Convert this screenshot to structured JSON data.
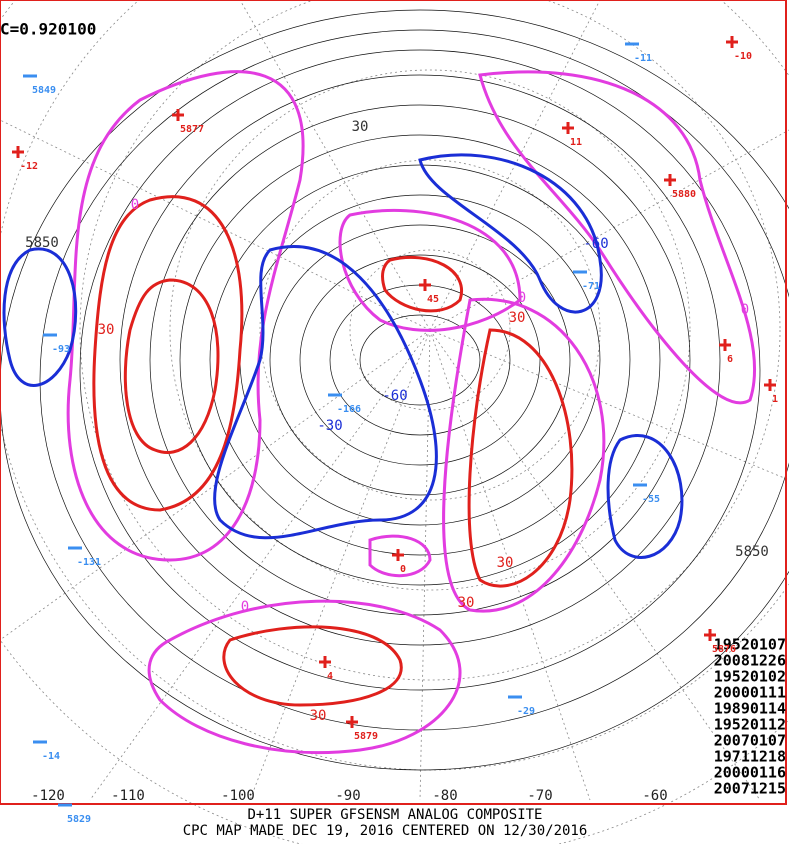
{
  "header": {
    "correlation": "C=0.920100"
  },
  "footer": {
    "line1": "D+11 SUPER GFSENSM ANALOG COMPOSITE",
    "line2": "CPC MAP MADE DEC 19, 2016 CENTERED ON 12/30/2016"
  },
  "analog_dates": [
    "19520107",
    "20081226",
    "19520102",
    "20000111",
    "19890114",
    "19520112",
    "20070107",
    "19711218",
    "20000116",
    "20071215"
  ],
  "longitude_labels": [
    "-120",
    "-110",
    "-100",
    "-90",
    "-80",
    "-70",
    "-60"
  ],
  "contour_labels": [
    "0",
    "0",
    "0",
    "0",
    "30",
    "30",
    "30",
    "30",
    "30",
    "-60",
    "-60",
    "5850",
    "5850",
    "-30",
    "30"
  ],
  "highs": [
    "-10",
    "11",
    "5877",
    "-12",
    "5880",
    "45",
    "0",
    "6",
    "1",
    "4",
    "5879",
    "5876"
  ],
  "lows": [
    "-11",
    "5849",
    "-93",
    "-71",
    "-131",
    "-29",
    "-14",
    "5829",
    "-55",
    "-166"
  ]
}
